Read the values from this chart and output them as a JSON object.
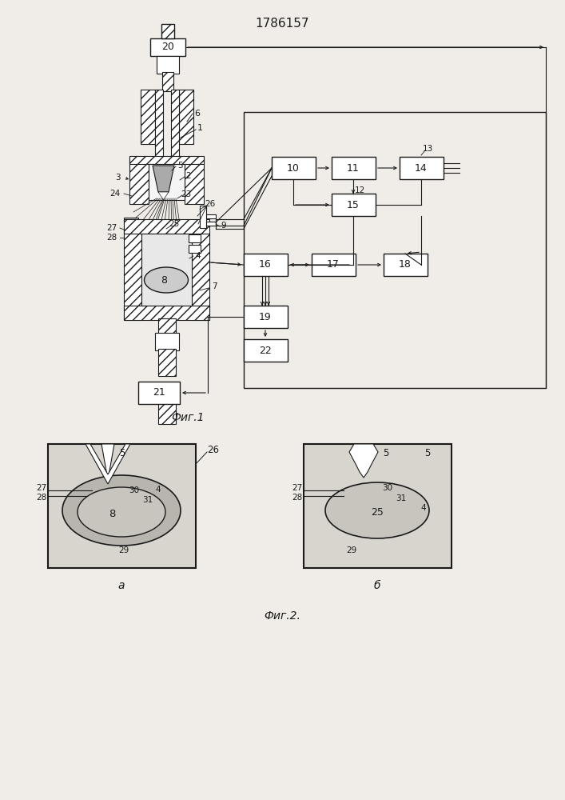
{
  "title": "1786157",
  "fig1_label": "Фиг.1",
  "fig2_label": "Фиг.2.",
  "fig2a_label": "а",
  "fig2b_label": "б",
  "bg_color": "#f0ede8",
  "line_color": "#1a1a1a",
  "fig_width": 7.07,
  "fig_height": 10.0
}
